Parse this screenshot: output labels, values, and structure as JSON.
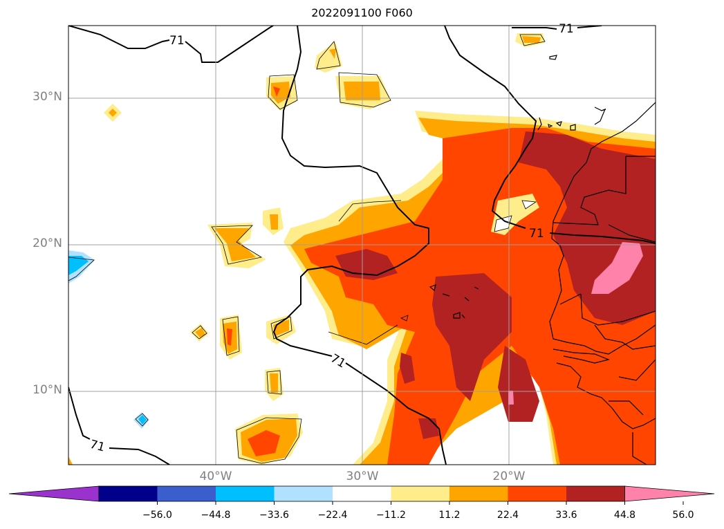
{
  "title": "2022091100 F060",
  "lat_labels": [
    "30°N",
    "20°N",
    "10°N"
  ],
  "lon_labels": [
    "40°W",
    "30°W",
    "20°W"
  ],
  "contour_label": "71",
  "colorbar": {
    "colors": [
      "#9a32cd",
      "#00008b",
      "#3a5fcd",
      "#00bfff",
      "#b0e2ff",
      "#ffffff",
      "#ffec8b",
      "#ffa500",
      "#ff4500",
      "#b22222",
      "#ff82ab"
    ],
    "tick_labels": [
      "−56.0",
      "−44.8",
      "−33.6",
      "−22.4",
      "−11.2",
      "11.2",
      "22.4",
      "33.6",
      "44.8",
      "56.0"
    ]
  },
  "chart_data": {
    "type": "heatmap",
    "title": "2022091100 F060",
    "x_ticks": [
      "40°W",
      "30°W",
      "20°W"
    ],
    "y_ticks": [
      "30°N",
      "20°N",
      "10°N"
    ],
    "levels": [
      -56.0,
      -44.8,
      -33.6,
      -22.4,
      -11.2,
      11.2,
      22.4,
      33.6,
      44.8,
      56.0
    ],
    "contour_value": 71
  }
}
